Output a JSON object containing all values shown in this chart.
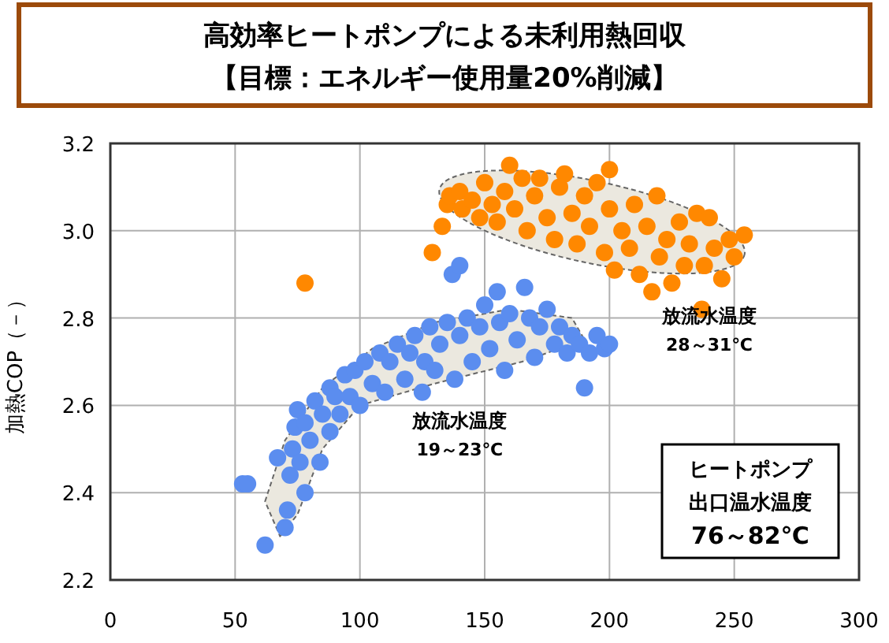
{
  "chart_data": {
    "type": "scatter",
    "title": "高効率ヒートポンプによる未利用熱回収",
    "subtitle": "【目標：エネルギー使用量20%削減】",
    "ylabel": "加熱COP（－）",
    "xlim": [
      0,
      300
    ],
    "xticks": [
      0,
      50,
      100,
      150,
      200,
      250,
      300
    ],
    "ylim": [
      2.2,
      3.2
    ],
    "yticks": [
      {
        "value": 2.2,
        "label": "2.2"
      },
      {
        "value": 2.4,
        "label": "2.4"
      },
      {
        "value": 2.6,
        "label": "2.6"
      },
      {
        "value": 2.8,
        "label": "2.8"
      },
      {
        "value": 3.0,
        "label": "3.0"
      },
      {
        "value": 3.2,
        "label": "3.2"
      }
    ],
    "grid": true,
    "marker": "circle",
    "series": [
      {
        "color": "#5b8def",
        "x": [
          53,
          55,
          62,
          67,
          70,
          71,
          72,
          73,
          74,
          75,
          76,
          78,
          78,
          80,
          82,
          84,
          85,
          88,
          88,
          90,
          92,
          94,
          96,
          98,
          100,
          102,
          105,
          108,
          110,
          112,
          115,
          118,
          120,
          122,
          125,
          126,
          128,
          130,
          132,
          135,
          137,
          138,
          140,
          140,
          143,
          145,
          148,
          150,
          152,
          155,
          156,
          158,
          160,
          163,
          166,
          168,
          170,
          172,
          175,
          178,
          180,
          183,
          185,
          188,
          190,
          192,
          195,
          198,
          200
        ],
        "values": [
          2.42,
          2.42,
          2.28,
          2.48,
          2.32,
          2.36,
          2.44,
          2.5,
          2.55,
          2.59,
          2.47,
          2.4,
          2.56,
          2.52,
          2.61,
          2.47,
          2.58,
          2.54,
          2.64,
          2.62,
          2.58,
          2.67,
          2.62,
          2.68,
          2.6,
          2.7,
          2.65,
          2.72,
          2.63,
          2.7,
          2.74,
          2.66,
          2.72,
          2.76,
          2.63,
          2.7,
          2.78,
          2.68,
          2.74,
          2.79,
          2.9,
          2.66,
          2.92,
          2.76,
          2.8,
          2.7,
          2.78,
          2.83,
          2.73,
          2.86,
          2.79,
          2.68,
          2.81,
          2.75,
          2.87,
          2.8,
          2.71,
          2.78,
          2.82,
          2.74,
          2.78,
          2.72,
          2.76,
          2.74,
          2.64,
          2.72,
          2.76,
          2.73,
          2.74
        ]
      },
      {
        "color": "#ff8800",
        "x": [
          78,
          129,
          133,
          135,
          136,
          140,
          141,
          145,
          148,
          150,
          153,
          155,
          158,
          160,
          162,
          165,
          167,
          170,
          172,
          175,
          178,
          180,
          182,
          185,
          187,
          190,
          192,
          195,
          200,
          198,
          200,
          202,
          205,
          208,
          210,
          212,
          215,
          217,
          219,
          220,
          223,
          225,
          228,
          230,
          232,
          235,
          237,
          238,
          240,
          242,
          245,
          248,
          250,
          254
        ],
        "values": [
          2.88,
          2.95,
          3.01,
          3.06,
          3.08,
          3.09,
          3.05,
          3.07,
          3.03,
          3.11,
          3.06,
          3.02,
          3.09,
          3.15,
          3.05,
          3.12,
          3.0,
          3.08,
          3.12,
          3.03,
          2.98,
          3.1,
          3.13,
          3.04,
          2.97,
          3.08,
          3.01,
          3.11,
          3.14,
          2.95,
          3.05,
          2.91,
          3.0,
          2.96,
          3.06,
          2.9,
          3.01,
          2.86,
          3.08,
          2.94,
          2.98,
          2.88,
          3.02,
          2.92,
          2.97,
          3.04,
          2.82,
          2.92,
          3.03,
          2.96,
          2.89,
          2.98,
          2.94,
          2.99
        ]
      }
    ],
    "annotations": [
      "放流水温度",
      "28～31℃",
      "放流水温度",
      "19～23℃",
      "ヒートポンプ",
      "出口温水温度",
      "76～82℃"
    ]
  }
}
